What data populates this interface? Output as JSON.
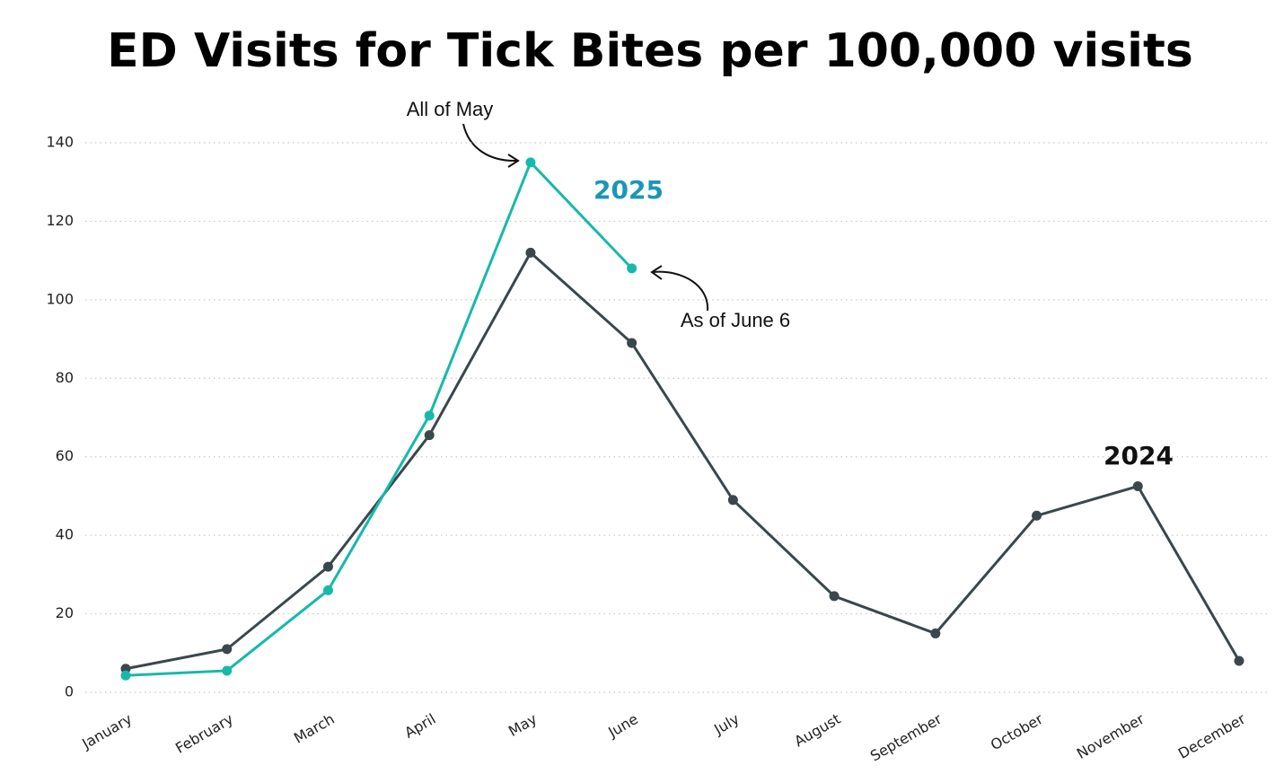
{
  "chart_data": {
    "type": "line",
    "title": "ED Visits for Tick Bites per 100,000 visits",
    "categories": [
      "January",
      "February",
      "March",
      "April",
      "May",
      "June",
      "July",
      "August",
      "September",
      "October",
      "November",
      "December"
    ],
    "series": [
      {
        "name": "2024",
        "color": "#3a474c",
        "values": [
          6,
          11,
          32,
          65.5,
          112,
          89,
          49,
          24.5,
          15,
          45,
          52.5,
          8
        ]
      },
      {
        "name": "2025",
        "color": "#17b9aa",
        "label_color": "#1a97b5",
        "values": [
          4.3,
          5.5,
          26,
          70.5,
          135,
          108,
          null,
          null,
          null,
          null,
          null,
          null
        ]
      }
    ],
    "annotations": [
      "All of May",
      "As of June 6"
    ],
    "ylim": [
      0,
      140
    ],
    "yticks": [
      0,
      20,
      40,
      60,
      80,
      100,
      120,
      140
    ],
    "grid": true
  }
}
